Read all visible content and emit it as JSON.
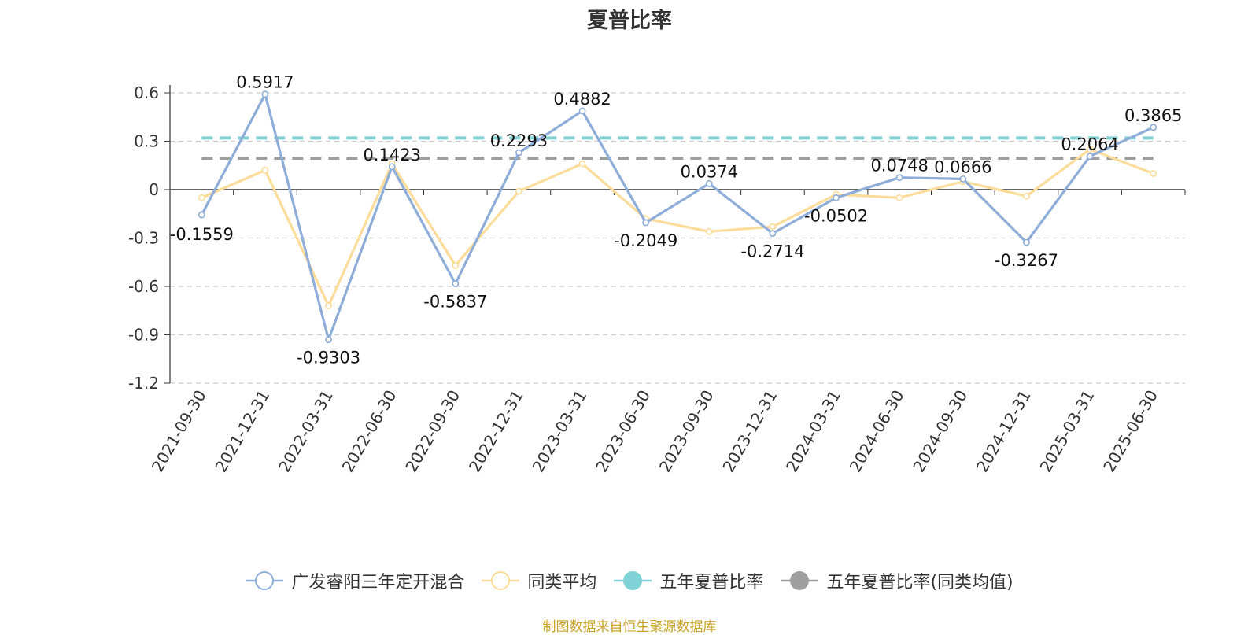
{
  "chart_data": {
    "type": "line",
    "title": "夏普比率",
    "categories": [
      "2021-09-30",
      "2021-12-31",
      "2022-03-31",
      "2022-06-30",
      "2022-09-30",
      "2022-12-31",
      "2023-03-31",
      "2023-06-30",
      "2023-09-30",
      "2023-12-31",
      "2024-03-31",
      "2024-06-30",
      "2024-09-30",
      "2024-12-31",
      "2025-03-31",
      "2025-06-30"
    ],
    "series": [
      {
        "name": "广发睿阳三年定开混合",
        "color": "#8eadd8",
        "values": [
          -0.1559,
          0.5917,
          -0.9303,
          0.1423,
          -0.5837,
          0.2293,
          0.4882,
          -0.2049,
          0.0374,
          -0.2714,
          -0.0502,
          0.0748,
          0.0666,
          -0.3267,
          0.2064,
          0.3865
        ],
        "labels": [
          "-0.1559",
          "0.5917",
          "-0.9303",
          "0.1423",
          "-0.5837",
          "0.2293",
          "0.4882",
          "-0.2049",
          "0.0374",
          "-0.2714",
          "-0.0502",
          "0.0748",
          "0.0666",
          "-0.3267",
          "0.2064",
          "0.3865"
        ]
      },
      {
        "name": "同类平均",
        "color": "#fcdc9a",
        "values": [
          -0.05,
          0.12,
          -0.72,
          0.16,
          -0.47,
          -0.01,
          0.16,
          -0.18,
          -0.26,
          -0.23,
          -0.03,
          -0.05,
          0.05,
          -0.04,
          0.25,
          0.1
        ]
      }
    ],
    "reference_lines": [
      {
        "name": "五年夏普比率",
        "color": "#7fd3d6",
        "value": 0.32
      },
      {
        "name": "五年夏普比率(同类均值)",
        "color": "#9e9e9e",
        "value": 0.195
      }
    ],
    "y_ticks": [
      "0.6",
      "0.3",
      "0",
      "-0.3",
      "-0.6",
      "-0.9",
      "-1.2"
    ],
    "ylim": [
      -1.2,
      0.6
    ],
    "grid": true,
    "legend_position": "bottom",
    "source": "制图数据来自恒生聚源数据库"
  }
}
